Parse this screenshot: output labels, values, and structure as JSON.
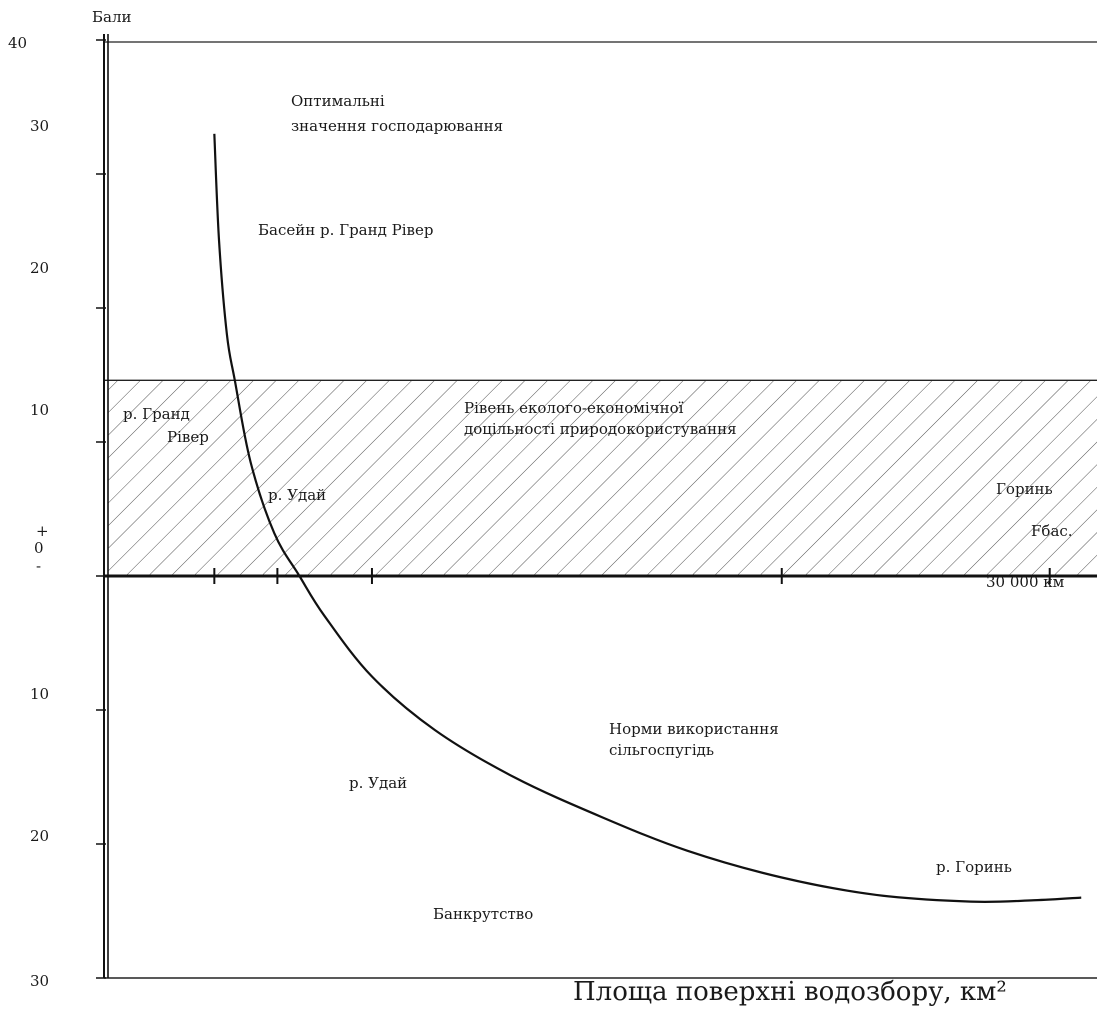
{
  "chart_data": {
    "type": "line",
    "ylabel": "Бали",
    "xlabel": "Площа поверхні водозбору, км²",
    "y_sign_plus": "+",
    "y_sign_minus": "-",
    "y_tick_labels_upper": [
      "40",
      "30",
      "20",
      "10",
      "0"
    ],
    "y_tick_labels_lower": [
      "10",
      "20",
      "30"
    ],
    "y_ticks": [
      {
        "label": "40",
        "value": 40
      },
      {
        "label": "30",
        "value": 30
      },
      {
        "label": "20",
        "value": 20
      },
      {
        "label": "10",
        "value": 10
      },
      {
        "label": "0",
        "value": 0
      },
      {
        "label": "10",
        "value": -10
      },
      {
        "label": "20",
        "value": -20
      },
      {
        "label": "30",
        "value": -30
      }
    ],
    "ylim": [
      -30,
      40
    ],
    "xlim": [
      0,
      31500
    ],
    "x_tick_values": [
      3500,
      5500,
      8500,
      21500,
      30000
    ],
    "x_tick_label": "30 000 км",
    "band": {
      "y_from": 0,
      "y_to": 14.6,
      "fill": "hatched"
    },
    "series": [
      {
        "points": [
          [
            3500,
            33
          ],
          [
            3650,
            25
          ],
          [
            3900,
            18
          ],
          [
            4150,
            14.6
          ],
          [
            4650,
            8.5
          ],
          [
            5400,
            3.2
          ],
          [
            6200,
            0
          ],
          [
            7000,
            -3
          ],
          [
            8500,
            -7.5
          ],
          [
            10500,
            -11.5
          ],
          [
            13000,
            -15
          ],
          [
            15800,
            -18
          ],
          [
            18500,
            -20.5
          ],
          [
            21500,
            -22.5
          ],
          [
            24500,
            -23.8
          ],
          [
            27500,
            -24.3
          ],
          [
            29500,
            -24.2
          ],
          [
            31000,
            -24
          ]
        ],
        "color": "#111111"
      }
    ],
    "annotations": [
      {
        "lines": [
          "Оптимальні",
          "значення господарювання"
        ]
      },
      {
        "lines": [
          "Басейн р. Гранд Рівер"
        ]
      },
      {
        "lines": [
          "р. Гранд",
          "Рівер"
        ]
      },
      {
        "lines": [
          "Рівень еколого-економічної",
          "доцільності природокористування"
        ]
      },
      {
        "lines": [
          "р. Удай"
        ]
      },
      {
        "lines": [
          "Горинь"
        ]
      },
      {
        "lines": [
          "Fбас."
        ]
      },
      {
        "lines": [
          "Норми використання",
          "сільгоспугідь"
        ]
      },
      {
        "lines": [
          "р. Удай"
        ]
      },
      {
        "lines": [
          "р. Горинь"
        ]
      },
      {
        "lines": [
          "Банкрутство"
        ]
      }
    ]
  }
}
